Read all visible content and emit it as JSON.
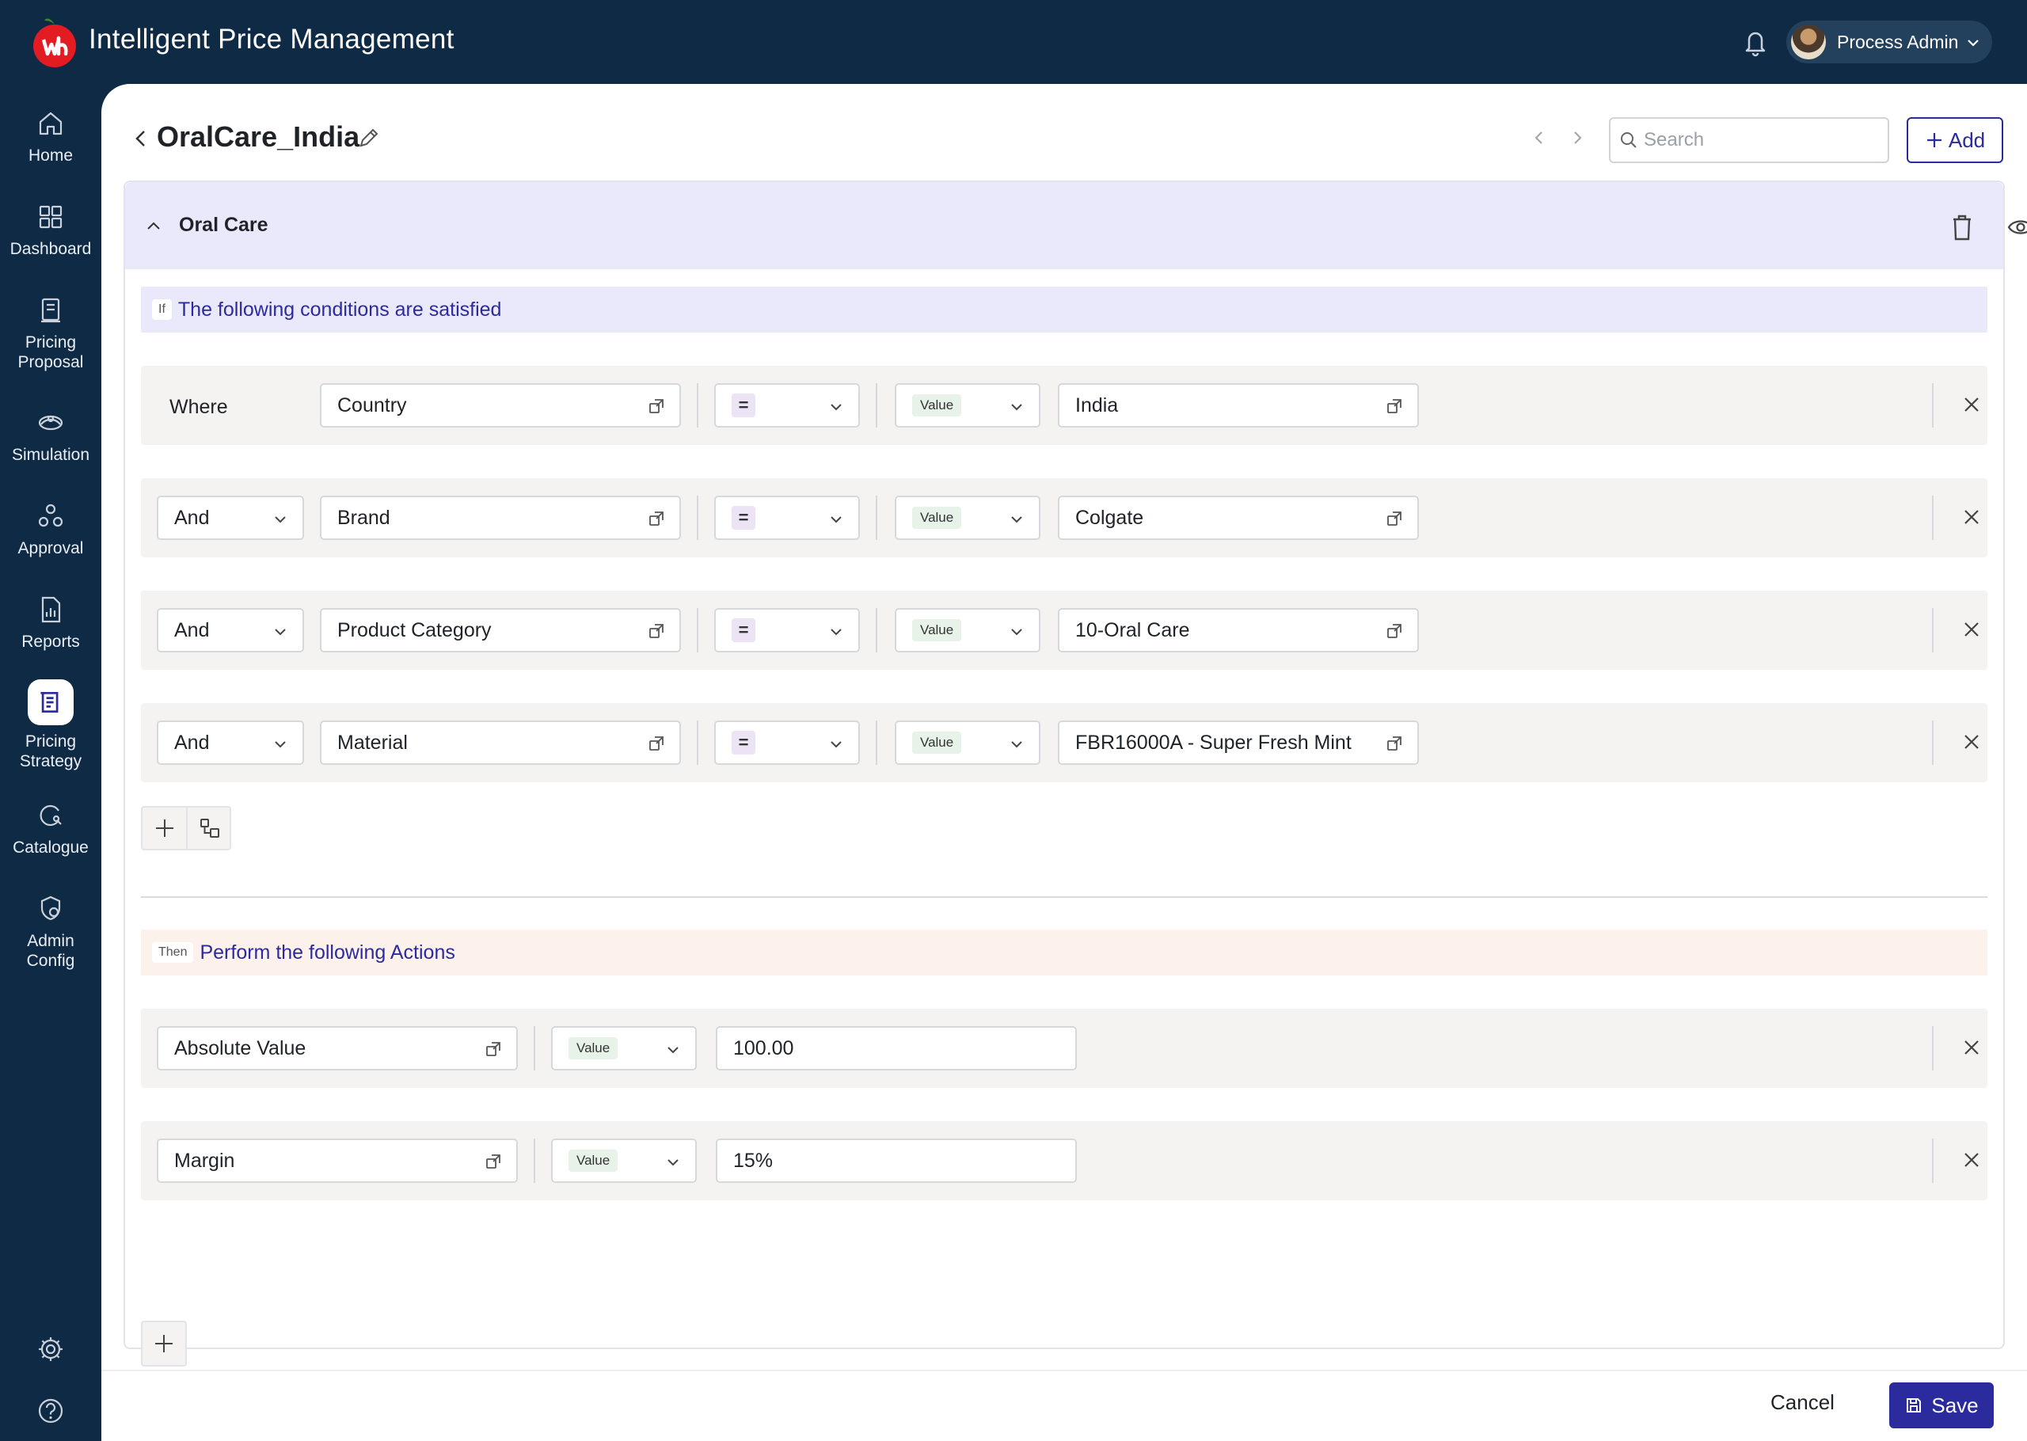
{
  "app": {
    "title": "Intelligent Price Management"
  },
  "user": {
    "name": "Process Admin"
  },
  "sidebar": {
    "items": [
      {
        "label": "Home",
        "icon": "home-icon"
      },
      {
        "label": "Dashboard",
        "icon": "dashboard-icon"
      },
      {
        "label": "Pricing Proposal",
        "icon": "pricing-proposal-icon"
      },
      {
        "label": "Simulation",
        "icon": "simulation-icon"
      },
      {
        "label": "Approval",
        "icon": "approval-icon"
      },
      {
        "label": "Reports",
        "icon": "reports-icon"
      },
      {
        "label": "Pricing Strategy",
        "icon": "pricing-strategy-icon",
        "active": true
      },
      {
        "label": "Catalogue",
        "icon": "catalogue-icon"
      },
      {
        "label": "Admin Config",
        "icon": "admin-config-icon"
      }
    ],
    "bottom": [
      "settings-icon",
      "help-icon"
    ]
  },
  "page": {
    "title": "OralCare_India",
    "search_placeholder": "Search",
    "add_label": "Add"
  },
  "group": {
    "title": "Oral Care",
    "conditions_tag": "If",
    "conditions_text": "The following conditions are satisfied",
    "actions_tag": "Then",
    "actions_text": "Perform the following Actions"
  },
  "conditions": [
    {
      "connector": "Where",
      "field": "Country",
      "operator": "=",
      "value_type": "Value",
      "value": "India"
    },
    {
      "connector": "And",
      "field": "Brand",
      "operator": "=",
      "value_type": "Value",
      "value": "Colgate"
    },
    {
      "connector": "And",
      "field": "Product Category",
      "operator": "=",
      "value_type": "Value",
      "value": "10-Oral Care"
    },
    {
      "connector": "And",
      "field": "Material",
      "operator": "=",
      "value_type": "Value",
      "value": "FBR16000A - Super Fresh Mint"
    }
  ],
  "actions": [
    {
      "field": "Absolute Value",
      "value_type": "Value",
      "value": "100.00"
    },
    {
      "field": "Margin",
      "value_type": "Value",
      "value": "15%"
    }
  ],
  "footer": {
    "cancel_label": "Cancel",
    "save_label": "Save"
  },
  "colors": {
    "nav_bg": "#0f2a44",
    "accent": "#2b2b9e",
    "group_header_bg": "#eae9fb",
    "then_bg": "#fdf1ec"
  }
}
